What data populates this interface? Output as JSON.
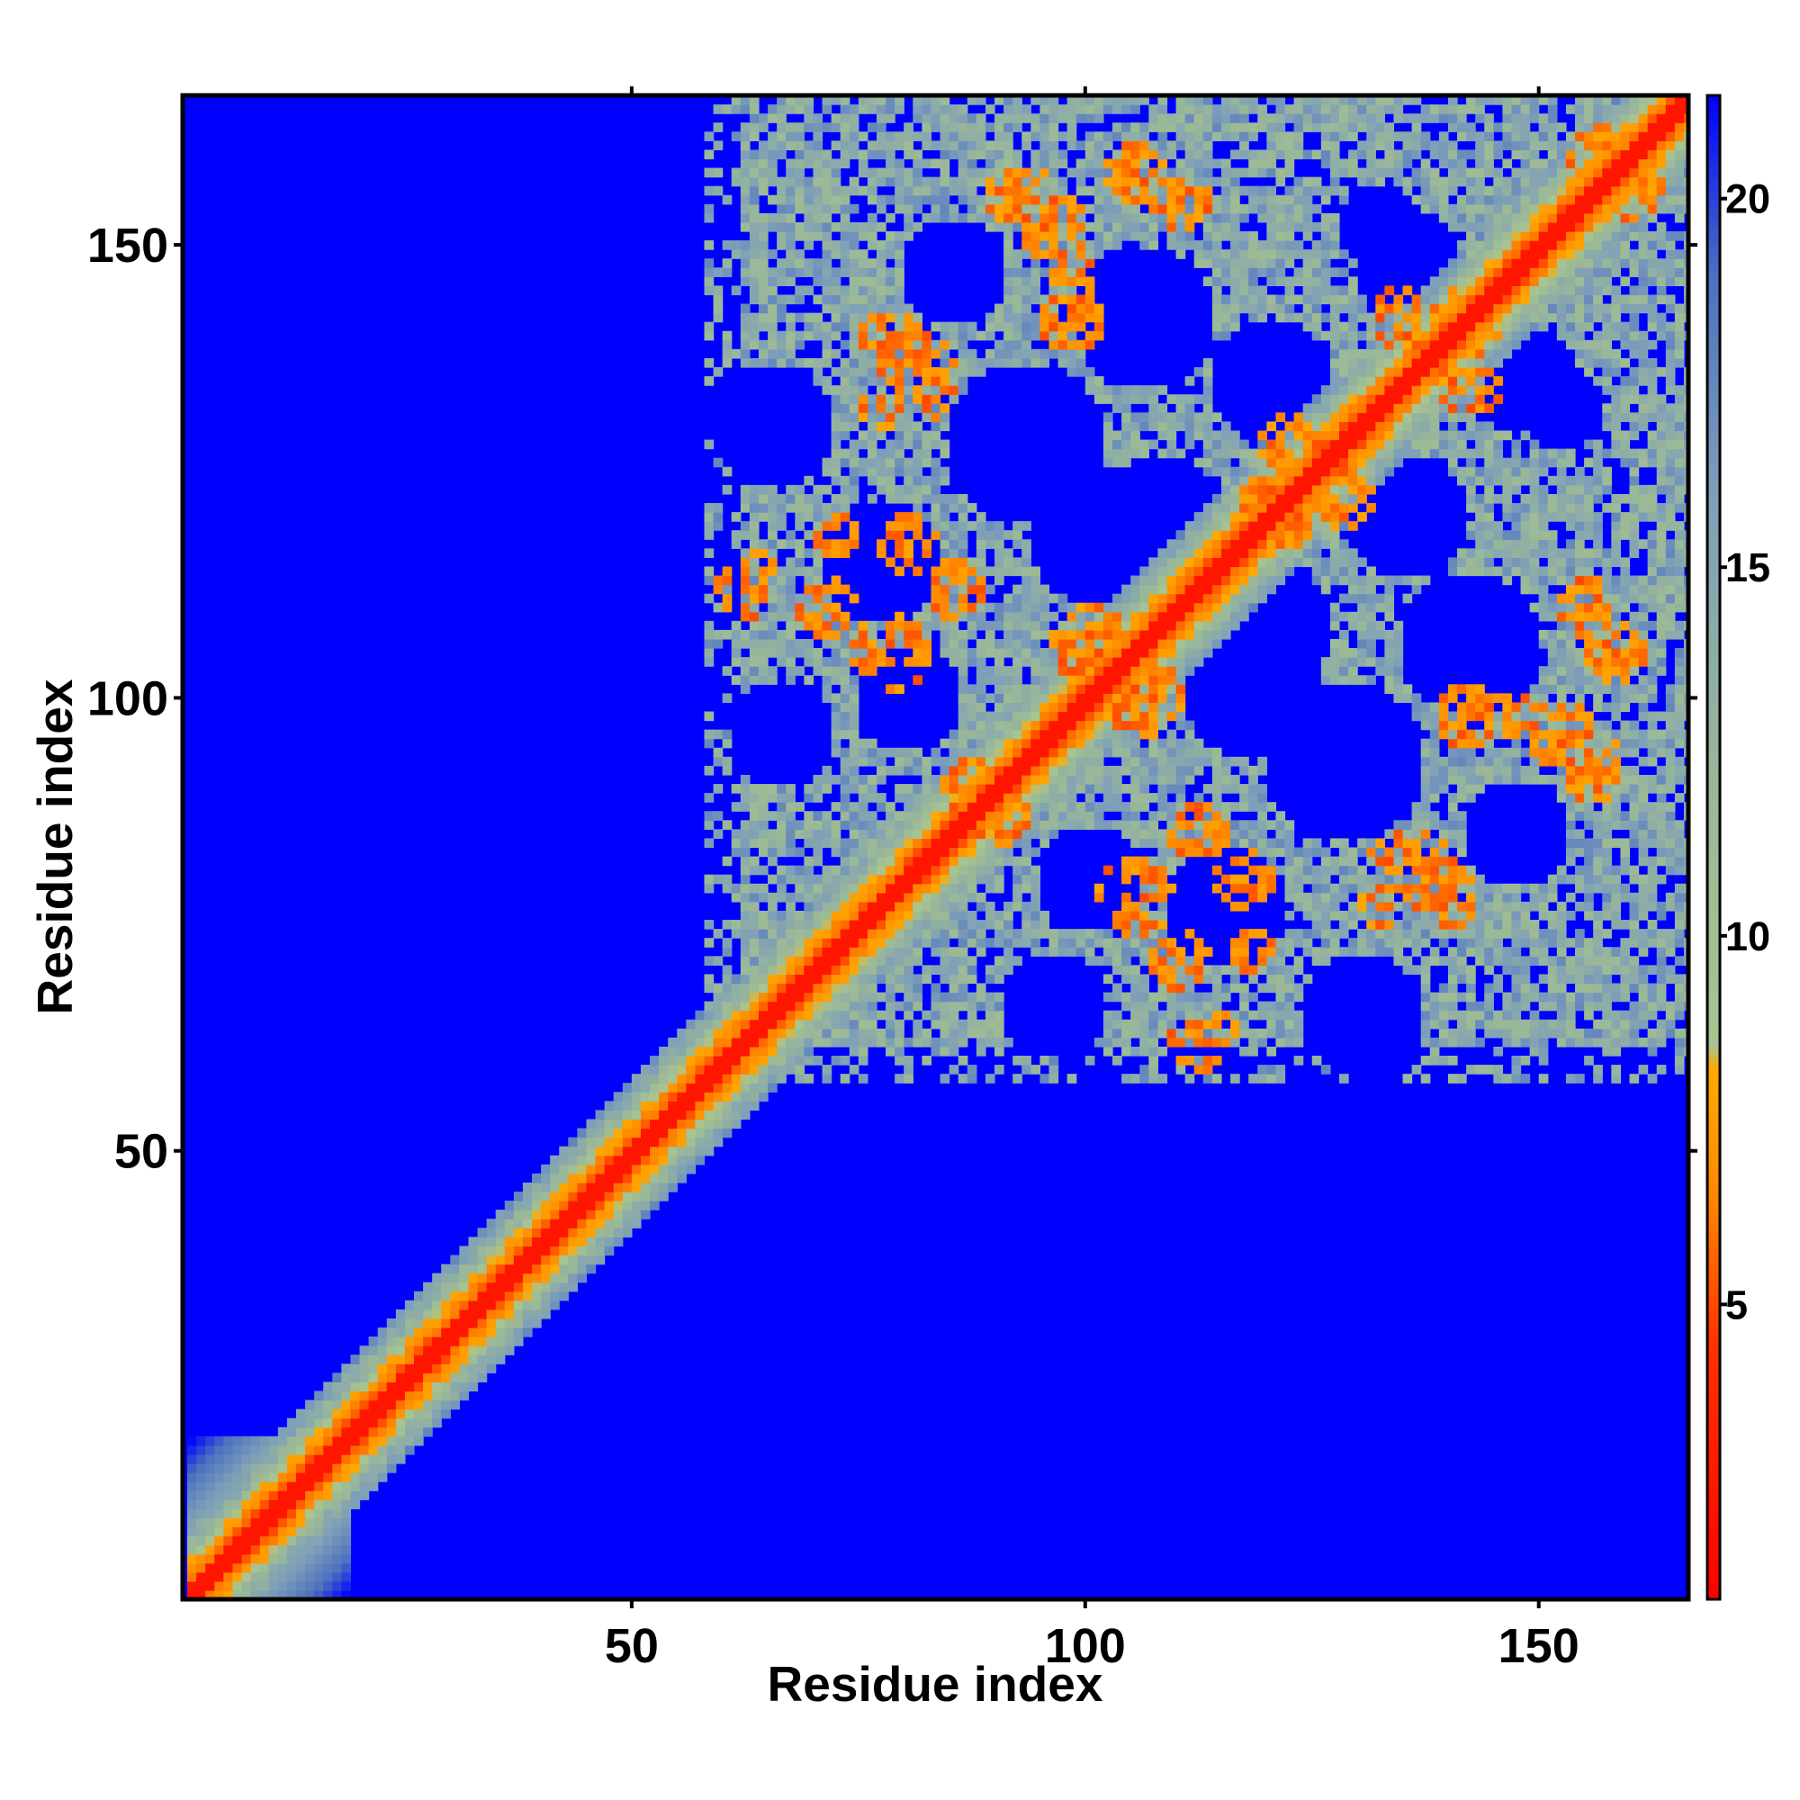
{
  "chart_data": {
    "type": "heatmap",
    "title": "",
    "xlabel": "Residue index",
    "ylabel": "Residue index",
    "n_residues": 166,
    "xlim": [
      1,
      166
    ],
    "ylim": [
      1,
      166
    ],
    "x_ticks": [
      50,
      100,
      150
    ],
    "y_ticks": [
      50,
      100,
      150
    ],
    "colorbar": {
      "ticks": [
        5,
        10,
        15,
        20
      ],
      "range": [
        1,
        21.4
      ],
      "stops": [
        {
          "value": 1,
          "color": "#ff0000"
        },
        {
          "value": 4.5,
          "color": "#ff3300"
        },
        {
          "value": 6.5,
          "color": "#ff8800"
        },
        {
          "value": 8.2,
          "color": "#ffaa00"
        },
        {
          "value": 8.5,
          "color": "#a8c490"
        },
        {
          "value": 12,
          "color": "#9ab898"
        },
        {
          "value": 16,
          "color": "#7f9fb8"
        },
        {
          "value": 19,
          "color": "#4a70c0"
        },
        {
          "value": 21.4,
          "color": "#0000ff"
        }
      ]
    },
    "background_color": "#0000ff",
    "diagonal_color": "#ff0000",
    "contact_regions": [
      {
        "x": [
          57,
          166
        ],
        "y": [
          58,
          166
        ],
        "note": "upper-right block with dense contacts"
      },
      {
        "x": [
          1,
          70
        ],
        "y": [
          1,
          70
        ],
        "note": "diagonal band"
      }
    ]
  }
}
